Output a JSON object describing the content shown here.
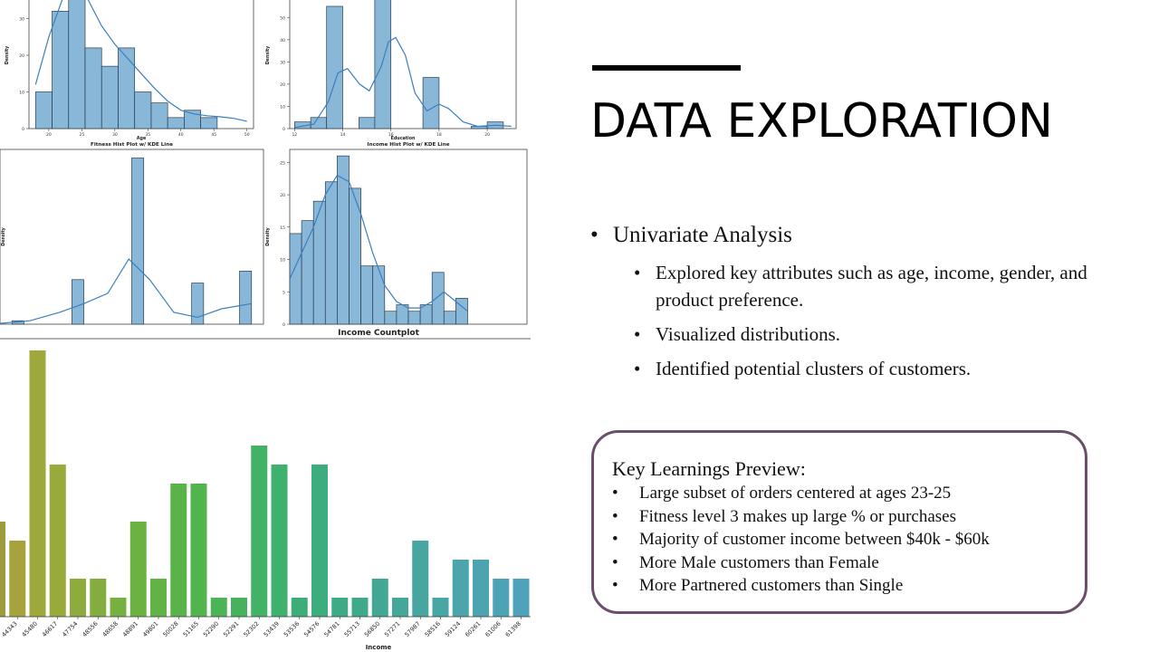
{
  "slide": {
    "title": "DATA EXPLORATION",
    "bullet": "Univariate Analysis",
    "sub_bullets": [
      "Explored key attributes such as age, income, gender, and product preference.",
      "Visualized distributions.",
      "Identified potential clusters of customers."
    ],
    "bullet_glyph": "•",
    "key_learnings": {
      "title": "Key Learnings Preview:",
      "items": [
        "Large subset of orders centered at ages 23-25",
        "Fitness level 3 makes up large % or purchases",
        "Majority of customer income between $40k - $60k",
        "More Male customers than Female",
        "More Partnered customers than Single"
      ]
    },
    "rule_color": "#000000",
    "box_border_color": "#6b4e6b"
  },
  "chart_data": [
    {
      "type": "bar",
      "xlabel": "Age",
      "ylabel": "Density",
      "x_ticks": [
        20,
        25,
        30,
        35,
        40,
        45,
        50
      ],
      "y_ticks": [
        0,
        10,
        20,
        30
      ],
      "xlim": [
        17,
        51
      ],
      "ylim": [
        0,
        40
      ],
      "bins": [
        [
          18,
          20.5
        ],
        [
          20.5,
          23
        ],
        [
          23,
          25.5
        ],
        [
          25.5,
          28
        ],
        [
          28,
          30.5
        ],
        [
          30.5,
          33
        ],
        [
          33,
          35.5
        ],
        [
          35.5,
          38
        ],
        [
          38,
          40.5
        ],
        [
          40.5,
          43
        ],
        [
          43,
          45.5
        ],
        [
          45.5,
          48
        ],
        [
          48,
          50.5
        ]
      ],
      "values": [
        10,
        32,
        38,
        22,
        17,
        22,
        10,
        7,
        3,
        5,
        3,
        0,
        0
      ],
      "kde": [
        [
          18,
          12
        ],
        [
          20,
          25
        ],
        [
          22,
          35
        ],
        [
          24,
          38.5
        ],
        [
          26,
          35
        ],
        [
          28,
          28
        ],
        [
          30,
          23
        ],
        [
          32,
          19
        ],
        [
          34,
          15
        ],
        [
          36,
          11
        ],
        [
          38,
          7.5
        ],
        [
          40,
          5
        ],
        [
          42,
          4
        ],
        [
          44,
          3.5
        ],
        [
          46,
          3.2
        ],
        [
          48,
          2.8
        ],
        [
          50,
          2
        ]
      ],
      "color": "#7bafd4"
    },
    {
      "type": "bar",
      "xlabel": "Education",
      "ylabel": "Density",
      "x_ticks": [
        12,
        14,
        16,
        18,
        20
      ],
      "y_ticks": [
        0,
        10,
        20,
        30,
        40,
        50,
        60
      ],
      "xlim": [
        11.8,
        21.2
      ],
      "ylim": [
        0,
        66
      ],
      "bins": [
        [
          12,
          12.67
        ],
        [
          12.67,
          13.33
        ],
        [
          13.33,
          14
        ],
        [
          14,
          14.67
        ],
        [
          14.67,
          15.33
        ],
        [
          15.33,
          16
        ],
        [
          16,
          16.67
        ],
        [
          16.67,
          17.33
        ],
        [
          17.33,
          18
        ],
        [
          18,
          18.67
        ],
        [
          18.67,
          19.33
        ],
        [
          19.33,
          20
        ],
        [
          20,
          20.67
        ],
        [
          20.67,
          21
        ]
      ],
      "values": [
        3,
        5,
        55,
        0,
        5,
        72,
        0,
        0,
        23,
        0,
        0,
        1,
        3,
        0
      ],
      "kde": [
        [
          12,
          0.5
        ],
        [
          12.8,
          2
        ],
        [
          13.4,
          12
        ],
        [
          13.8,
          25
        ],
        [
          14.2,
          27
        ],
        [
          14.7,
          20
        ],
        [
          15.1,
          17
        ],
        [
          15.6,
          28
        ],
        [
          15.9,
          39
        ],
        [
          16.2,
          41
        ],
        [
          16.6,
          33
        ],
        [
          17,
          16
        ],
        [
          17.5,
          8
        ],
        [
          18,
          11
        ],
        [
          18.4,
          9
        ],
        [
          19,
          3
        ],
        [
          19.6,
          1
        ],
        [
          20.4,
          1.5
        ],
        [
          21,
          1
        ]
      ],
      "color": "#7bafd4"
    },
    {
      "type": "bar",
      "title": "Fitness Hist Plot w/ KDE Line",
      "xlabel": "",
      "ylabel": "Density",
      "y_ticks": [
        0,
        20,
        40,
        60,
        80,
        100
      ],
      "xlim": [
        0.8,
        5.2
      ],
      "ylim": [
        0,
        102
      ],
      "bins": [
        [
          1,
          1.2
        ],
        [
          2,
          2.2
        ],
        [
          3,
          3.2
        ],
        [
          4,
          4.2
        ],
        [
          4.8,
          5
        ]
      ],
      "values": [
        2,
        26,
        97,
        24,
        31
      ],
      "kde": [
        [
          0.8,
          0.5
        ],
        [
          1.3,
          2
        ],
        [
          1.8,
          7
        ],
        [
          2.2,
          12
        ],
        [
          2.6,
          18
        ],
        [
          2.95,
          38
        ],
        [
          3.3,
          26
        ],
        [
          3.7,
          7
        ],
        [
          4.1,
          4
        ],
        [
          4.5,
          9
        ],
        [
          5.0,
          12
        ]
      ],
      "color": "#7bafd4"
    },
    {
      "type": "bar",
      "title": "Income Hist Plot w/ KDE Line",
      "xlabel": "",
      "ylabel": "Density",
      "y_ticks": [
        0,
        5,
        10,
        15,
        20,
        25
      ],
      "xlim": [
        0,
        20
      ],
      "ylim": [
        0,
        27
      ],
      "bins": [
        [
          0,
          1
        ],
        [
          1,
          2
        ],
        [
          2,
          3
        ],
        [
          3,
          4
        ],
        [
          4,
          5
        ],
        [
          5,
          6
        ],
        [
          6,
          7
        ],
        [
          7,
          8
        ],
        [
          8,
          9
        ],
        [
          9,
          10
        ],
        [
          10,
          11
        ],
        [
          11,
          12
        ],
        [
          12,
          13
        ],
        [
          13,
          14
        ],
        [
          14,
          15
        ]
      ],
      "values": [
        14,
        16,
        19,
        22,
        26,
        21,
        9,
        9,
        2,
        3,
        2,
        3,
        8,
        2,
        4
      ],
      "kde": [
        [
          0,
          7
        ],
        [
          1,
          11
        ],
        [
          2,
          15
        ],
        [
          3,
          20
        ],
        [
          4,
          23
        ],
        [
          5,
          22
        ],
        [
          6,
          17
        ],
        [
          7,
          11
        ],
        [
          8,
          6
        ],
        [
          9,
          3.5
        ],
        [
          10,
          2.5
        ],
        [
          11,
          2.5
        ],
        [
          12,
          3.5
        ],
        [
          13,
          5
        ],
        [
          14,
          3.5
        ],
        [
          15,
          2
        ]
      ],
      "color": "#7bafd4"
    },
    {
      "type": "bar",
      "title": "Income Countplot",
      "xlabel": "Income",
      "categories": [
        "43206",
        "44343",
        "45480",
        "46617",
        "47754",
        "48556",
        "48658",
        "48891",
        "49801",
        "50028",
        "51165",
        "52290",
        "52291",
        "52302",
        "53439",
        "53536",
        "54576",
        "54781",
        "55713",
        "56850",
        "57271",
        "57987",
        "58516",
        "59124",
        "60261",
        "61006",
        "61398"
      ],
      "values": [
        5,
        4,
        14,
        8,
        2,
        2,
        1,
        5,
        2,
        7,
        7,
        1,
        1,
        9,
        8,
        1,
        8,
        1,
        1,
        2,
        1,
        4,
        1,
        3,
        3,
        2,
        2
      ],
      "colors": [
        "#9c9a3c",
        "#a7a33c",
        "#9fa83a",
        "#98aa39",
        "#8dac3d",
        "#83ad3f",
        "#76b041",
        "#6bb243",
        "#62b346",
        "#58b449",
        "#51b44c",
        "#4bb455",
        "#46b25e",
        "#42b266",
        "#3fb16f",
        "#3dae77",
        "#3dac7e",
        "#3eaa86",
        "#40a98c",
        "#43a893",
        "#45a79a",
        "#47a6a0",
        "#49a6a6",
        "#4ba5ab",
        "#4ca4b0",
        "#4da3b5",
        "#4ea2ba"
      ]
    }
  ]
}
